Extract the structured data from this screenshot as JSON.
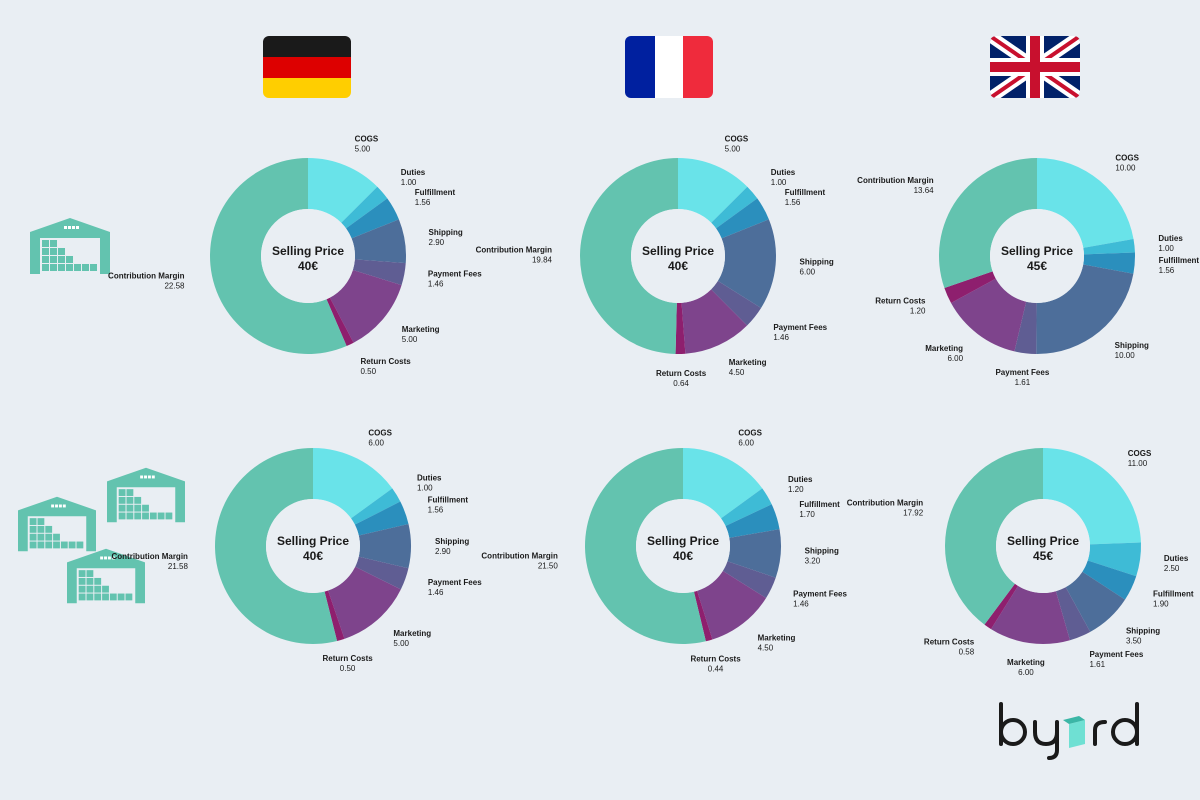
{
  "colors": {
    "background": "#e9eef3",
    "COGS": "#69e3e9",
    "Duties": "#3ebbd6",
    "Fulfillment": "#2b8fbd",
    "Shipping": "#4d6e9a",
    "Payment Fees": "#5f5d93",
    "Marketing": "#7e448c",
    "Return Costs": "#8e1f6e",
    "Contribution Margin": "#63c3af",
    "warehouse_icon": "#63c3af"
  },
  "flags": [
    "germany-flag-icon",
    "france-flag-icon",
    "uk-flag-icon"
  ],
  "logo": {
    "text": "byrd"
  },
  "chart_data": [
    {
      "type": "pie",
      "center_title": "Selling Price",
      "center_value": "40€",
      "slices": [
        {
          "label": "COGS",
          "value": 5.0,
          "display": "5.00"
        },
        {
          "label": "Duties",
          "value": 1.0,
          "display": "1.00"
        },
        {
          "label": "Fulfillment",
          "value": 1.56,
          "display": "1.56"
        },
        {
          "label": "Shipping",
          "value": 2.9,
          "display": "2.90"
        },
        {
          "label": "Payment Fees",
          "value": 1.46,
          "display": "1.46"
        },
        {
          "label": "Marketing",
          "value": 5.0,
          "display": "5.00"
        },
        {
          "label": "Return Costs",
          "value": 0.5,
          "display": "0.50"
        },
        {
          "label": "Contribution Margin",
          "value": 22.58,
          "display": "22.58"
        }
      ]
    },
    {
      "type": "pie",
      "center_title": "Selling Price",
      "center_value": "40€",
      "slices": [
        {
          "label": "COGS",
          "value": 5.0,
          "display": "5.00"
        },
        {
          "label": "Duties",
          "value": 1.0,
          "display": "1.00"
        },
        {
          "label": "Fulfillment",
          "value": 1.56,
          "display": "1.56"
        },
        {
          "label": "Shipping",
          "value": 6.0,
          "display": "6.00"
        },
        {
          "label": "Payment Fees",
          "value": 1.46,
          "display": "1.46"
        },
        {
          "label": "Marketing",
          "value": 4.5,
          "display": "4.50"
        },
        {
          "label": "Return Costs",
          "value": 0.64,
          "display": "0.64"
        },
        {
          "label": "Contribution Margin",
          "value": 19.84,
          "display": "19.84"
        }
      ]
    },
    {
      "type": "pie",
      "center_title": "Selling Price",
      "center_value": "45€",
      "slices": [
        {
          "label": "COGS",
          "value": 10.0,
          "display": "10.00"
        },
        {
          "label": "Duties",
          "value": 1.0,
          "display": "1.00"
        },
        {
          "label": "Fulfillment",
          "value": 1.56,
          "display": "1.56"
        },
        {
          "label": "Shipping",
          "value": 10.0,
          "display": "10.00"
        },
        {
          "label": "Payment Fees",
          "value": 1.61,
          "display": "1.61"
        },
        {
          "label": "Marketing",
          "value": 6.0,
          "display": "6.00"
        },
        {
          "label": "Return Costs",
          "value": 1.2,
          "display": "1.20"
        },
        {
          "label": "Contribution Margin",
          "value": 13.64,
          "display": "13.64"
        }
      ]
    },
    {
      "type": "pie",
      "center_title": "Selling Price",
      "center_value": "40€",
      "slices": [
        {
          "label": "COGS",
          "value": 6.0,
          "display": "6.00"
        },
        {
          "label": "Duties",
          "value": 1.0,
          "display": "1.00"
        },
        {
          "label": "Fulfillment",
          "value": 1.56,
          "display": "1.56"
        },
        {
          "label": "Shipping",
          "value": 2.9,
          "display": "2.90"
        },
        {
          "label": "Payment Fees",
          "value": 1.46,
          "display": "1.46"
        },
        {
          "label": "Marketing",
          "value": 5.0,
          "display": "5.00"
        },
        {
          "label": "Return Costs",
          "value": 0.5,
          "display": "0.50"
        },
        {
          "label": "Contribution Margin",
          "value": 21.58,
          "display": "21.58"
        }
      ]
    },
    {
      "type": "pie",
      "center_title": "Selling Price",
      "center_value": "40€",
      "slices": [
        {
          "label": "COGS",
          "value": 6.0,
          "display": "6.00"
        },
        {
          "label": "Duties",
          "value": 1.2,
          "display": "1.20"
        },
        {
          "label": "Fulfillment",
          "value": 1.7,
          "display": "1.70"
        },
        {
          "label": "Shipping",
          "value": 3.2,
          "display": "3.20"
        },
        {
          "label": "Payment Fees",
          "value": 1.46,
          "display": "1.46"
        },
        {
          "label": "Marketing",
          "value": 4.5,
          "display": "4.50"
        },
        {
          "label": "Return Costs",
          "value": 0.44,
          "display": "0.44"
        },
        {
          "label": "Contribution Margin",
          "value": 21.5,
          "display": "21.50"
        }
      ]
    },
    {
      "type": "pie",
      "center_title": "Selling Price",
      "center_value": "45€",
      "slices": [
        {
          "label": "COGS",
          "value": 11.0,
          "display": "11.00"
        },
        {
          "label": "Duties",
          "value": 2.5,
          "display": "2.50"
        },
        {
          "label": "Fulfillment",
          "value": 1.9,
          "display": "1.90"
        },
        {
          "label": "Shipping",
          "value": 3.5,
          "display": "3.50"
        },
        {
          "label": "Payment Fees",
          "value": 1.61,
          "display": "1.61"
        },
        {
          "label": "Marketing",
          "value": 6.0,
          "display": "6.00"
        },
        {
          "label": "Return Costs",
          "value": 0.58,
          "display": "0.58"
        },
        {
          "label": "Contribution Margin",
          "value": 17.92,
          "display": "17.92"
        }
      ]
    }
  ]
}
